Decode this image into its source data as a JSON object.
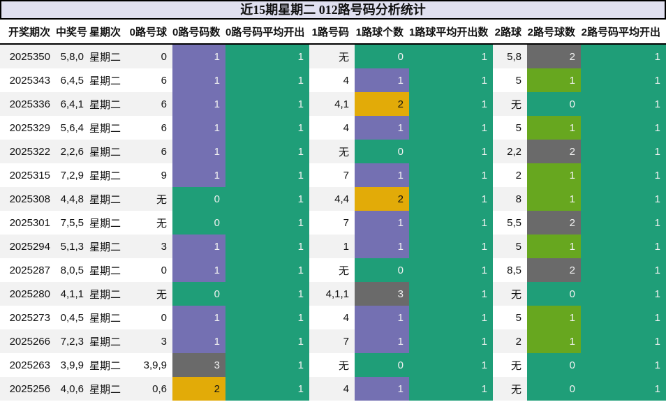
{
  "title": "近15期星期二 012路号码分析统计",
  "colors": {
    "teal": "#1f9e78",
    "purple": "#7470b2",
    "orange": "#e2ab08",
    "gray": "#6a6a6a",
    "lgreen": "#67a71f",
    "stripe": "#f2f2f2",
    "title_bg": "#e0e0f0",
    "light_text": "#f2f2f2",
    "dark_text": "#111111"
  },
  "table": {
    "columns": [
      {
        "key": "period",
        "name": "draw-period",
        "label": "开奖期次",
        "width": 80
      },
      {
        "key": "win",
        "name": "winning-numbers",
        "label": "中奖号",
        "width": 48
      },
      {
        "key": "week",
        "name": "weekday",
        "label": "星期次",
        "width": 52,
        "align": "center"
      },
      {
        "key": "r0",
        "name": "road0-balls",
        "label": "0路号球",
        "width": 67
      },
      {
        "key": "r0n",
        "name": "road0-count",
        "label": "0路号码数",
        "width": 76,
        "fill": "row",
        "color_from": "r0c"
      },
      {
        "key": "r0a",
        "name": "road0-average",
        "label": "0路号码平均开出",
        "width": 120,
        "fill": "teal"
      },
      {
        "key": "r1",
        "name": "road1-balls",
        "label": "1路号码",
        "width": 65
      },
      {
        "key": "r1n",
        "name": "road1-count",
        "label": "1路球个数",
        "width": 78,
        "fill": "row",
        "color_from": "r1c"
      },
      {
        "key": "r1a",
        "name": "road1-average",
        "label": "1路球平均开出数",
        "width": 120,
        "fill": "teal"
      },
      {
        "key": "r2",
        "name": "road2-balls",
        "label": "2路球",
        "width": 49
      },
      {
        "key": "r2n",
        "name": "road2-count",
        "label": "2路号球数",
        "width": 77,
        "fill": "row",
        "color_from": "r2c"
      },
      {
        "key": "r2a",
        "name": "road2-average",
        "label": "2路号码平均开出",
        "width": 122,
        "fill": "teal"
      }
    ],
    "rows": [
      {
        "period": "2025350",
        "win": "5,8,0",
        "week": "星期二",
        "r0": "0",
        "r0n": "1",
        "r0c": "purple",
        "r0a": "1",
        "r1": "无",
        "r1n": "0",
        "r1c": "teal",
        "r1a": "1",
        "r2": "5,8",
        "r2n": "2",
        "r2c": "gray",
        "r2a": "1"
      },
      {
        "period": "2025343",
        "win": "6,4,5",
        "week": "星期二",
        "r0": "6",
        "r0n": "1",
        "r0c": "purple",
        "r0a": "1",
        "r1": "4",
        "r1n": "1",
        "r1c": "purple",
        "r1a": "1",
        "r2": "5",
        "r2n": "1",
        "r2c": "lgreen",
        "r2a": "1"
      },
      {
        "period": "2025336",
        "win": "6,4,1",
        "week": "星期二",
        "r0": "6",
        "r0n": "1",
        "r0c": "purple",
        "r0a": "1",
        "r1": "4,1",
        "r1n": "2",
        "r1c": "orange",
        "r1a": "1",
        "r2": "无",
        "r2n": "0",
        "r2c": "teal",
        "r2a": "1"
      },
      {
        "period": "2025329",
        "win": "5,6,4",
        "week": "星期二",
        "r0": "6",
        "r0n": "1",
        "r0c": "purple",
        "r0a": "1",
        "r1": "4",
        "r1n": "1",
        "r1c": "purple",
        "r1a": "1",
        "r2": "5",
        "r2n": "1",
        "r2c": "lgreen",
        "r2a": "1"
      },
      {
        "period": "2025322",
        "win": "2,2,6",
        "week": "星期二",
        "r0": "6",
        "r0n": "1",
        "r0c": "purple",
        "r0a": "1",
        "r1": "无",
        "r1n": "0",
        "r1c": "teal",
        "r1a": "1",
        "r2": "2,2",
        "r2n": "2",
        "r2c": "gray",
        "r2a": "1"
      },
      {
        "period": "2025315",
        "win": "7,2,9",
        "week": "星期二",
        "r0": "9",
        "r0n": "1",
        "r0c": "purple",
        "r0a": "1",
        "r1": "7",
        "r1n": "1",
        "r1c": "purple",
        "r1a": "1",
        "r2": "2",
        "r2n": "1",
        "r2c": "lgreen",
        "r2a": "1"
      },
      {
        "period": "2025308",
        "win": "4,4,8",
        "week": "星期二",
        "r0": "无",
        "r0n": "0",
        "r0c": "teal",
        "r0a": "1",
        "r1": "4,4",
        "r1n": "2",
        "r1c": "orange",
        "r1a": "1",
        "r2": "8",
        "r2n": "1",
        "r2c": "lgreen",
        "r2a": "1"
      },
      {
        "period": "2025301",
        "win": "7,5,5",
        "week": "星期二",
        "r0": "无",
        "r0n": "0",
        "r0c": "teal",
        "r0a": "1",
        "r1": "7",
        "r1n": "1",
        "r1c": "purple",
        "r1a": "1",
        "r2": "5,5",
        "r2n": "2",
        "r2c": "gray",
        "r2a": "1"
      },
      {
        "period": "2025294",
        "win": "5,1,3",
        "week": "星期二",
        "r0": "3",
        "r0n": "1",
        "r0c": "purple",
        "r0a": "1",
        "r1": "1",
        "r1n": "1",
        "r1c": "purple",
        "r1a": "1",
        "r2": "5",
        "r2n": "1",
        "r2c": "lgreen",
        "r2a": "1"
      },
      {
        "period": "2025287",
        "win": "8,0,5",
        "week": "星期二",
        "r0": "0",
        "r0n": "1",
        "r0c": "purple",
        "r0a": "1",
        "r1": "无",
        "r1n": "0",
        "r1c": "teal",
        "r1a": "1",
        "r2": "8,5",
        "r2n": "2",
        "r2c": "gray",
        "r2a": "1"
      },
      {
        "period": "2025280",
        "win": "4,1,1",
        "week": "星期二",
        "r0": "无",
        "r0n": "0",
        "r0c": "teal",
        "r0a": "1",
        "r1": "4,1,1",
        "r1n": "3",
        "r1c": "gray",
        "r1a": "1",
        "r2": "无",
        "r2n": "0",
        "r2c": "teal",
        "r2a": "1"
      },
      {
        "period": "2025273",
        "win": "0,4,5",
        "week": "星期二",
        "r0": "0",
        "r0n": "1",
        "r0c": "purple",
        "r0a": "1",
        "r1": "4",
        "r1n": "1",
        "r1c": "purple",
        "r1a": "1",
        "r2": "5",
        "r2n": "1",
        "r2c": "lgreen",
        "r2a": "1"
      },
      {
        "period": "2025266",
        "win": "7,2,3",
        "week": "星期二",
        "r0": "3",
        "r0n": "1",
        "r0c": "purple",
        "r0a": "1",
        "r1": "7",
        "r1n": "1",
        "r1c": "purple",
        "r1a": "1",
        "r2": "2",
        "r2n": "1",
        "r2c": "lgreen",
        "r2a": "1"
      },
      {
        "period": "2025263",
        "win": "3,9,9",
        "week": "星期二",
        "r0": "3,9,9",
        "r0n": "3",
        "r0c": "gray",
        "r0a": "1",
        "r1": "无",
        "r1n": "0",
        "r1c": "teal",
        "r1a": "1",
        "r2": "无",
        "r2n": "0",
        "r2c": "teal",
        "r2a": "1"
      },
      {
        "period": "2025256",
        "win": "4,0,6",
        "week": "星期二",
        "r0": "0,6",
        "r0n": "2",
        "r0c": "orange",
        "r0a": "1",
        "r1": "4",
        "r1n": "1",
        "r1c": "purple",
        "r1a": "1",
        "r2": "无",
        "r2n": "0",
        "r2c": "teal",
        "r2a": "1"
      }
    ]
  }
}
